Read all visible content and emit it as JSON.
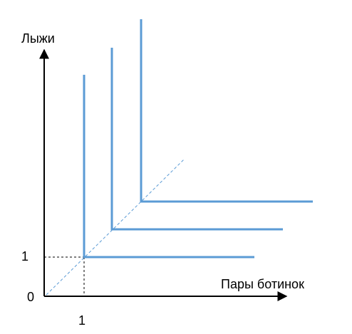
{
  "diagram": {
    "y_axis_label": "Лыжи",
    "x_axis_label": "Пары ботинок",
    "origin_label": "0",
    "x_tick_label": "1",
    "y_tick_label": "1"
  },
  "chart_data": {
    "type": "line",
    "title": "",
    "xlabel": "Пары ботинок",
    "ylabel": "Лыжи",
    "x_ticks": [
      "1"
    ],
    "y_ticks": [
      "1"
    ],
    "series": [
      {
        "kind": "indifference-curve",
        "corner": [
          1,
          1
        ]
      },
      {
        "kind": "indifference-curve",
        "corner": [
          2,
          2
        ]
      },
      {
        "kind": "indifference-curve",
        "corner": [
          3,
          3
        ]
      }
    ],
    "guide_line": {
      "kind": "ray-from-origin",
      "style": "dashed",
      "slope": 1
    },
    "grid": false
  },
  "colors": {
    "curve": "#5b9bd5",
    "axis": "#000000",
    "guide": "#5b9bd5",
    "projection": "#000000"
  }
}
